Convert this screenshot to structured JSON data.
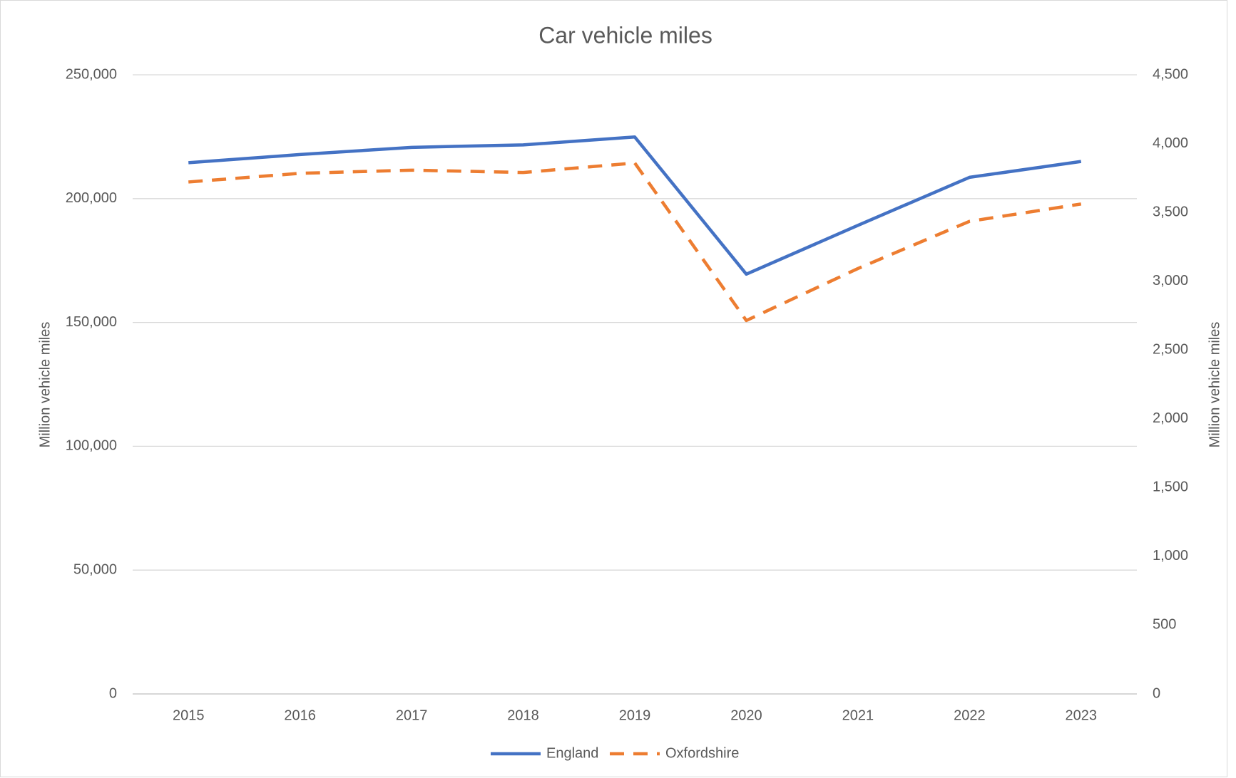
{
  "chart_data": {
    "type": "line",
    "title": "Car vehicle miles",
    "categories": [
      "2015",
      "2016",
      "2017",
      "2018",
      "2019",
      "2020",
      "2021",
      "2022",
      "2023"
    ],
    "series": [
      {
        "name": "England",
        "color": "#4472c4",
        "dashed": false,
        "values": [
          214500,
          217800,
          220700,
          221700,
          224900,
          169500,
          189200,
          208600,
          215000
        ]
      },
      {
        "name": "Oxfordshire",
        "color": "#ed7d31",
        "dashed": true,
        "axis": "y2",
        "values": [
          3721,
          3784,
          3807,
          3790,
          3859,
          2714,
          3092,
          3435,
          3561
        ]
      }
    ],
    "ylabel": "Million vehicle miles",
    "y2label": "Million vehicle miles",
    "ylim": [
      0,
      250000
    ],
    "yticks": [
      0,
      {
        "value": 50000,
        "label": "50,000"
      },
      {
        "value": 100000,
        "label": "100,000"
      },
      {
        "value": 150000,
        "label": "150,000"
      },
      {
        "value": 200000,
        "label": "200,000"
      },
      {
        "value": 250000,
        "label": "250,000"
      }
    ],
    "y2lim": [
      0,
      4500
    ],
    "y2ticks": [
      0,
      500,
      {
        "value": 1000,
        "label": "1,000"
      },
      {
        "value": 1500,
        "label": "1,500"
      },
      {
        "value": 2000,
        "label": "2,000"
      },
      {
        "value": 2500,
        "label": "2,500"
      },
      {
        "value": 3000,
        "label": "3,000"
      },
      {
        "value": 3500,
        "label": "3,500"
      },
      {
        "value": 4000,
        "label": "4,000"
      },
      {
        "value": 4500,
        "label": "4,500"
      }
    ],
    "grid": true,
    "legend": "bottom"
  }
}
